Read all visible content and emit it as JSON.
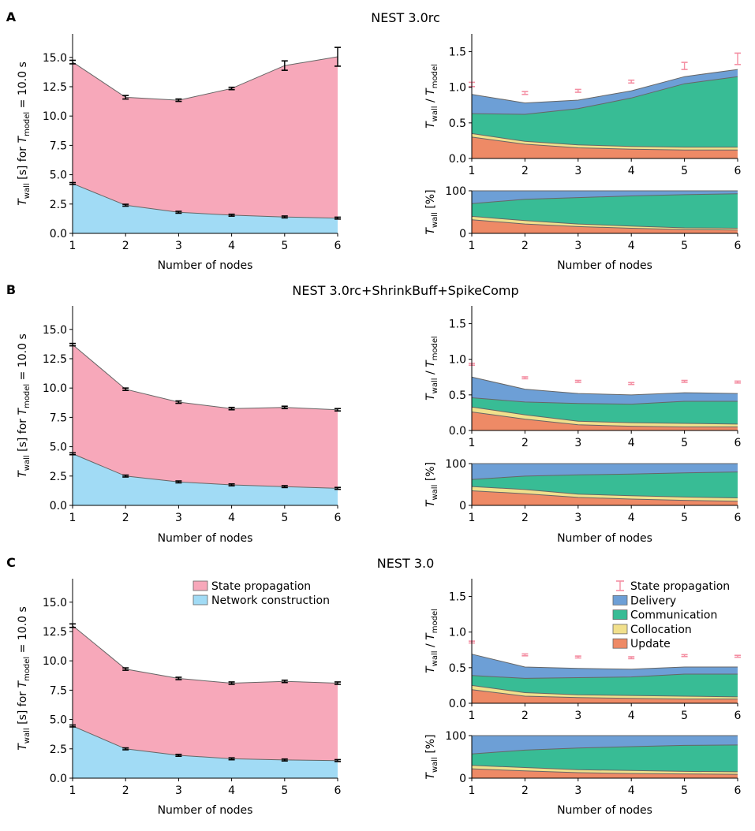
{
  "figure": {
    "xlabel": "Number of nodes",
    "ylabel_left_main": "T",
    "ylabel_left_sub": "wall",
    "ylabel_left_rest": " [s] for T",
    "ylabel_left_sub2": "model",
    "ylabel_left_tail": " = 10.0 s",
    "ylabel_rt_main": "T",
    "ylabel_rt_sub": "wall",
    "ylabel_rt_mid": " / T",
    "ylabel_rt_sub2": "model",
    "ylabel_rb_main": "T",
    "ylabel_rb_sub": "wall",
    "ylabel_rb_tail": " [%]"
  },
  "colors": {
    "state_propagation": "#f7a8ba",
    "network_construction": "#a1dbf5",
    "delivery": "#6d9fd6",
    "communication": "#38bc95",
    "collocation": "#f1e08c",
    "update": "#ee8a66",
    "errorbar_pink": "#f48fa3",
    "line": "#666666"
  },
  "legend_left": [
    "State propagation",
    "Network construction"
  ],
  "legend_right": [
    "State propagation",
    "Delivery",
    "Communication",
    "Collocation",
    "Update"
  ],
  "chart_data": [
    {
      "panel": "A",
      "title": "NEST 3.0rc",
      "type": "area",
      "x": [
        1,
        2,
        3,
        4,
        5,
        6
      ],
      "left": {
        "ylim": [
          0,
          17
        ],
        "yticks": [
          "0.0",
          "2.5",
          "5.0",
          "7.5",
          "10.0",
          "12.5",
          "15.0"
        ],
        "network_construction": [
          4.25,
          2.4,
          1.8,
          1.55,
          1.4,
          1.3
        ],
        "total": [
          14.6,
          11.6,
          11.35,
          12.35,
          14.3,
          15.05
        ],
        "total_err": [
          0.15,
          0.15,
          0.1,
          0.1,
          0.4,
          0.8
        ]
      },
      "right_top": {
        "ylim": [
          0,
          1.75
        ],
        "yticks": [
          "0.0",
          "0.5",
          "1.0",
          "1.5"
        ],
        "update": [
          0.3,
          0.2,
          0.15,
          0.13,
          0.12,
          0.12
        ],
        "collocation": [
          0.35,
          0.24,
          0.19,
          0.17,
          0.16,
          0.16
        ],
        "communication": [
          0.63,
          0.62,
          0.7,
          0.85,
          1.05,
          1.15
        ],
        "delivery": [
          0.9,
          0.78,
          0.82,
          0.95,
          1.15,
          1.25
        ],
        "state_propagation": [
          1.04,
          0.92,
          0.95,
          1.08,
          1.3,
          1.4
        ],
        "state_propagation_err": [
          0.03,
          0.02,
          0.02,
          0.02,
          0.05,
          0.08
        ]
      },
      "right_bottom": {
        "ylim": [
          0,
          100
        ],
        "yticks": [
          "0",
          "100"
        ],
        "update": [
          32,
          22,
          16,
          12,
          9,
          8
        ],
        "collocation": [
          40,
          30,
          22,
          17,
          13,
          12
        ],
        "communication": [
          70,
          80,
          84,
          88,
          91,
          93
        ]
      }
    },
    {
      "panel": "B",
      "title": "NEST 3.0rc+ShrinkBuff+SpikeComp",
      "type": "area",
      "x": [
        1,
        2,
        3,
        4,
        5,
        6
      ],
      "left": {
        "ylim": [
          0,
          17
        ],
        "yticks": [
          "0.0",
          "2.5",
          "5.0",
          "7.5",
          "10.0",
          "12.5",
          "15.0"
        ],
        "network_construction": [
          4.4,
          2.5,
          2.0,
          1.75,
          1.6,
          1.45
        ],
        "total": [
          13.7,
          9.9,
          8.8,
          8.25,
          8.35,
          8.15
        ],
        "total_err": [
          0.1,
          0.1,
          0.1,
          0.1,
          0.1,
          0.1
        ]
      },
      "right_top": {
        "ylim": [
          0,
          1.75
        ],
        "yticks": [
          "0.0",
          "0.5",
          "1.0",
          "1.5"
        ],
        "update": [
          0.26,
          0.16,
          0.08,
          0.06,
          0.05,
          0.05
        ],
        "collocation": [
          0.33,
          0.22,
          0.13,
          0.11,
          0.1,
          0.09
        ],
        "communication": [
          0.46,
          0.4,
          0.38,
          0.37,
          0.41,
          0.41
        ],
        "delivery": [
          0.75,
          0.58,
          0.52,
          0.5,
          0.53,
          0.52
        ],
        "state_propagation": [
          0.93,
          0.74,
          0.69,
          0.66,
          0.69,
          0.68
        ],
        "state_propagation_err": [
          0.01,
          0.01,
          0.01,
          0.01,
          0.01,
          0.01
        ]
      },
      "right_bottom": {
        "ylim": [
          0,
          100
        ],
        "yticks": [
          "0",
          "100"
        ],
        "update": [
          35,
          28,
          19,
          15,
          12,
          10
        ],
        "collocation": [
          45,
          38,
          27,
          23,
          20,
          18
        ],
        "communication": [
          62,
          70,
          73,
          75,
          78,
          80
        ]
      }
    },
    {
      "panel": "C",
      "title": "NEST 3.0",
      "type": "area",
      "x": [
        1,
        2,
        3,
        4,
        5,
        6
      ],
      "left": {
        "ylim": [
          0,
          17
        ],
        "yticks": [
          "0.0",
          "2.5",
          "5.0",
          "7.5",
          "10.0",
          "12.5",
          "15.0"
        ],
        "network_construction": [
          4.45,
          2.5,
          1.95,
          1.65,
          1.55,
          1.5
        ],
        "total": [
          13.0,
          9.3,
          8.5,
          8.1,
          8.25,
          8.1
        ],
        "total_err": [
          0.15,
          0.1,
          0.05,
          0.05,
          0.05,
          0.1
        ]
      },
      "right_top": {
        "ylim": [
          0,
          1.75
        ],
        "yticks": [
          "0.0",
          "0.5",
          "1.0",
          "1.5"
        ],
        "update": [
          0.19,
          0.1,
          0.08,
          0.07,
          0.06,
          0.06
        ],
        "collocation": [
          0.25,
          0.15,
          0.12,
          0.11,
          0.1,
          0.09
        ],
        "communication": [
          0.39,
          0.35,
          0.36,
          0.37,
          0.41,
          0.41
        ],
        "delivery": [
          0.69,
          0.51,
          0.49,
          0.48,
          0.51,
          0.51
        ],
        "state_propagation": [
          0.86,
          0.68,
          0.65,
          0.64,
          0.67,
          0.66
        ],
        "state_propagation_err": [
          0.01,
          0.01,
          0.01,
          0.01,
          0.01,
          0.01
        ]
      },
      "right_bottom": {
        "ylim": [
          0,
          100
        ],
        "yticks": [
          "0",
          "100"
        ],
        "update": [
          22,
          17,
          13,
          11,
          10,
          9
        ],
        "collocation": [
          30,
          25,
          20,
          18,
          16,
          15
        ],
        "communication": [
          57,
          66,
          71,
          74,
          77,
          78
        ]
      }
    }
  ]
}
